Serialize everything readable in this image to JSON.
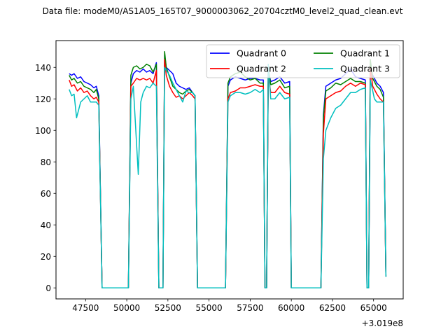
{
  "chart_data": {
    "type": "line",
    "title": "Data file: modeM0/AS1A05_165T07_9000003062_20704cztM0_level2_quad_clean.evt",
    "x_offset_label": "+3.019e8",
    "xlabel": "",
    "ylabel": "",
    "xlim": [
      45700,
      66800
    ],
    "ylim": [
      -7,
      157
    ],
    "x_ticks": [
      47500,
      50000,
      52500,
      55000,
      57500,
      60000,
      62500,
      65000
    ],
    "x_tick_labels": [
      "47500",
      "50000",
      "52500",
      "55000",
      "57500",
      "60000",
      "62500",
      "65000"
    ],
    "y_ticks": [
      0,
      20,
      40,
      60,
      80,
      100,
      120,
      140
    ],
    "y_tick_labels": [
      "0",
      "20",
      "40",
      "60",
      "80",
      "100",
      "120",
      "140"
    ],
    "grid": false,
    "legend_position": "top-right",
    "legend_columns": 2,
    "series": [
      {
        "name": "Quadrant 0",
        "color": "#0000ff",
        "x": [
          46500,
          46650,
          46800,
          47000,
          47200,
          47400,
          47600,
          47800,
          48000,
          48150,
          48300,
          48500,
          50100,
          50250,
          50400,
          50600,
          50800,
          51000,
          51200,
          51400,
          51600,
          51800,
          51950,
          52050,
          52200,
          52300,
          52400,
          52600,
          52800,
          53000,
          53200,
          53400,
          53600,
          53800,
          54000,
          54150,
          54300,
          56000,
          56150,
          56300,
          56600,
          56900,
          57200,
          57500,
          57800,
          58100,
          58300,
          58400,
          58500,
          58600,
          58750,
          59000,
          59300,
          59600,
          59900,
          60000,
          61800,
          61950,
          62100,
          62400,
          62700,
          63000,
          63300,
          63600,
          63900,
          64200,
          64500,
          64600,
          64700,
          64800,
          64950,
          65050,
          65200,
          65400,
          65600,
          65750
        ],
        "values": [
          136,
          135,
          136,
          133,
          134,
          131,
          130,
          129,
          127,
          128,
          122,
          0,
          0,
          130,
          136,
          138,
          137,
          139,
          137,
          138,
          136,
          143,
          0,
          0,
          0,
          148,
          140,
          138,
          136,
          130,
          128,
          127,
          126,
          127,
          124,
          122,
          0,
          0,
          128,
          132,
          134,
          133,
          132,
          133,
          133,
          132,
          132,
          0,
          0,
          138,
          131,
          132,
          134,
          130,
          131,
          0,
          0,
          110,
          128,
          130,
          132,
          133,
          136,
          139,
          134,
          133,
          132,
          0,
          0,
          138,
          135,
          133,
          130,
          128,
          124,
          7
        ]
      },
      {
        "name": "Quadrant 1",
        "color": "#008000",
        "x": [
          46500,
          46650,
          46800,
          47000,
          47200,
          47400,
          47600,
          47800,
          48000,
          48150,
          48300,
          48500,
          50100,
          50250,
          50400,
          50600,
          50800,
          51000,
          51200,
          51400,
          51600,
          51800,
          51950,
          52050,
          52200,
          52300,
          52400,
          52600,
          52800,
          53000,
          53200,
          53400,
          53600,
          53800,
          54000,
          54150,
          54300,
          56000,
          56150,
          56300,
          56600,
          56900,
          57200,
          57500,
          57800,
          58100,
          58300,
          58400,
          58500,
          58600,
          58750,
          59000,
          59300,
          59600,
          59900,
          60000,
          61800,
          61950,
          62100,
          62400,
          62700,
          63000,
          63300,
          63600,
          63900,
          64200,
          64500,
          64600,
          64700,
          64800,
          64950,
          65050,
          65200,
          65400,
          65600,
          65750
        ],
        "values": [
          135,
          132,
          133,
          130,
          131,
          128,
          127,
          126,
          124,
          126,
          120,
          0,
          0,
          135,
          140,
          141,
          139,
          140,
          142,
          141,
          137,
          142,
          0,
          0,
          0,
          150,
          140,
          134,
          128,
          126,
          124,
          123,
          125,
          126,
          124,
          122,
          0,
          0,
          130,
          134,
          136,
          137,
          134,
          132,
          133,
          130,
          130,
          0,
          0,
          140,
          129,
          130,
          132,
          127,
          128,
          0,
          0,
          108,
          125,
          127,
          130,
          129,
          131,
          133,
          131,
          131,
          130,
          0,
          0,
          145,
          133,
          131,
          128,
          126,
          121,
          7
        ]
      },
      {
        "name": "Quadrant 2",
        "color": "#ff0000",
        "x": [
          46500,
          46650,
          46800,
          47000,
          47200,
          47400,
          47600,
          47800,
          48000,
          48150,
          48300,
          48500,
          50100,
          50250,
          50400,
          50600,
          50800,
          51000,
          51200,
          51400,
          51600,
          51800,
          51950,
          52050,
          52200,
          52300,
          52400,
          52600,
          52800,
          53000,
          53200,
          53400,
          53600,
          53800,
          54000,
          54150,
          54300,
          56000,
          56150,
          56300,
          56600,
          56900,
          57200,
          57500,
          57800,
          58100,
          58300,
          58400,
          58500,
          58600,
          58750,
          59000,
          59300,
          59600,
          59900,
          60000,
          61800,
          61950,
          62100,
          62400,
          62700,
          63000,
          63300,
          63600,
          63900,
          64200,
          64500,
          64600,
          64700,
          64800,
          64950,
          65050,
          65200,
          65400,
          65600,
          65750
        ],
        "values": [
          132,
          128,
          129,
          125,
          127,
          124,
          125,
          122,
          120,
          121,
          118,
          0,
          0,
          128,
          130,
          133,
          132,
          133,
          132,
          133,
          130,
          138,
          0,
          0,
          0,
          145,
          135,
          128,
          124,
          121,
          122,
          120,
          122,
          124,
          122,
          120,
          0,
          0,
          120,
          124,
          125,
          127,
          127,
          128,
          129,
          128,
          128,
          0,
          0,
          135,
          124,
          124,
          128,
          124,
          123,
          0,
          0,
          98,
          120,
          122,
          124,
          125,
          128,
          130,
          128,
          130,
          129,
          0,
          0,
          140,
          128,
          126,
          123,
          120,
          118,
          7
        ]
      },
      {
        "name": "Quadrant 3",
        "color": "#00bfbf",
        "x": [
          46500,
          46650,
          46800,
          46950,
          47200,
          47400,
          47600,
          47800,
          48000,
          48150,
          48300,
          48500,
          50100,
          50250,
          50400,
          50550,
          50700,
          50850,
          51000,
          51200,
          51400,
          51600,
          51800,
          51950,
          52050,
          52200,
          52300,
          52400,
          52600,
          52800,
          53000,
          53200,
          53400,
          53600,
          53800,
          54000,
          54150,
          54300,
          56000,
          56150,
          56300,
          56600,
          56900,
          57200,
          57500,
          57800,
          58100,
          58300,
          58400,
          58500,
          58600,
          58750,
          59000,
          59300,
          59600,
          59900,
          60000,
          61800,
          61950,
          62100,
          62400,
          62700,
          63000,
          63300,
          63600,
          63900,
          64200,
          64500,
          64600,
          64700,
          64800,
          64950,
          65050,
          65200,
          65400,
          65600,
          65750
        ],
        "values": [
          126,
          122,
          123,
          108,
          118,
          120,
          122,
          118,
          118,
          118,
          116,
          0,
          0,
          120,
          128,
          100,
          72,
          118,
          124,
          128,
          127,
          130,
          128,
          0,
          0,
          0,
          140,
          138,
          135,
          130,
          126,
          122,
          118,
          125,
          124,
          124,
          122,
          0,
          0,
          118,
          122,
          124,
          124,
          123,
          124,
          126,
          124,
          126,
          0,
          0,
          142,
          120,
          120,
          124,
          120,
          121,
          0,
          0,
          82,
          100,
          108,
          114,
          116,
          120,
          124,
          124,
          126,
          127,
          0,
          0,
          132,
          125,
          120,
          118,
          118,
          118,
          7
        ]
      }
    ]
  }
}
